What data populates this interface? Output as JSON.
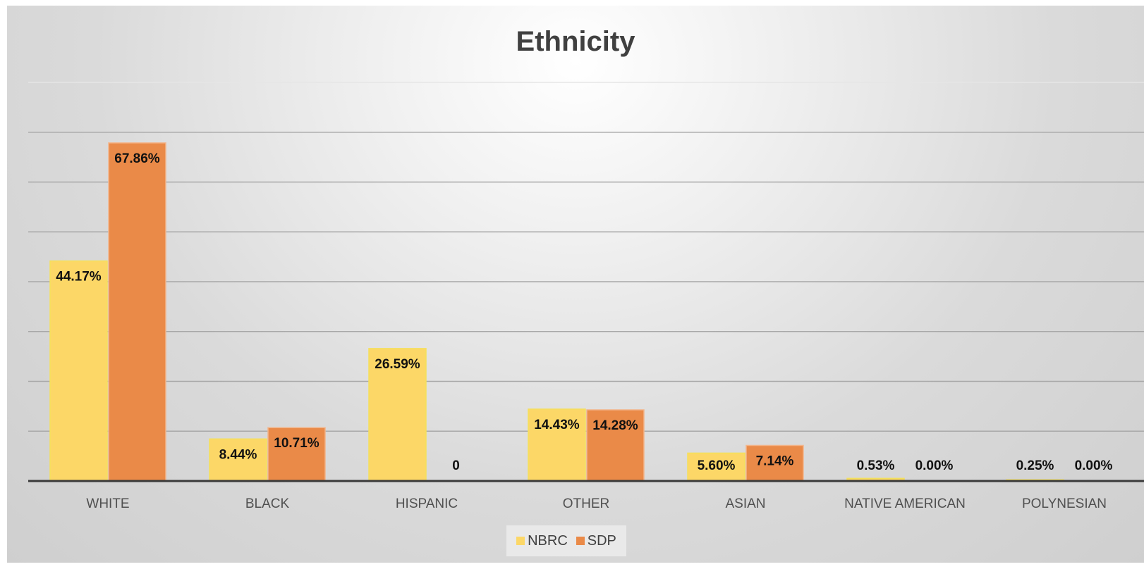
{
  "chart_data": {
    "type": "bar",
    "title": "Ethnicity",
    "categories": [
      "WHITE",
      "BLACK",
      "HISPANIC",
      "OTHER",
      "ASIAN",
      "NATIVE AMERICAN",
      "POLYNESIAN"
    ],
    "series": [
      {
        "name": "NBRC",
        "color": "#FCD767",
        "values": [
          44.17,
          8.44,
          26.59,
          14.43,
          5.6,
          0.53,
          0.25
        ],
        "labels": [
          "44.17%",
          "8.44%",
          "26.59%",
          "14.43%",
          "5.60%",
          "0.53%",
          "0.25%"
        ]
      },
      {
        "name": "SDP",
        "color": "#EA8A48",
        "values": [
          67.86,
          10.71,
          0,
          14.28,
          7.14,
          0.0,
          0.0
        ],
        "labels": [
          "67.86%",
          "10.71%",
          "0",
          "14.28%",
          "7.14%",
          "0.00%",
          "0.00%"
        ]
      }
    ],
    "ylim": [
      0,
      80
    ],
    "grid": true,
    "legend_position": "bottom"
  }
}
